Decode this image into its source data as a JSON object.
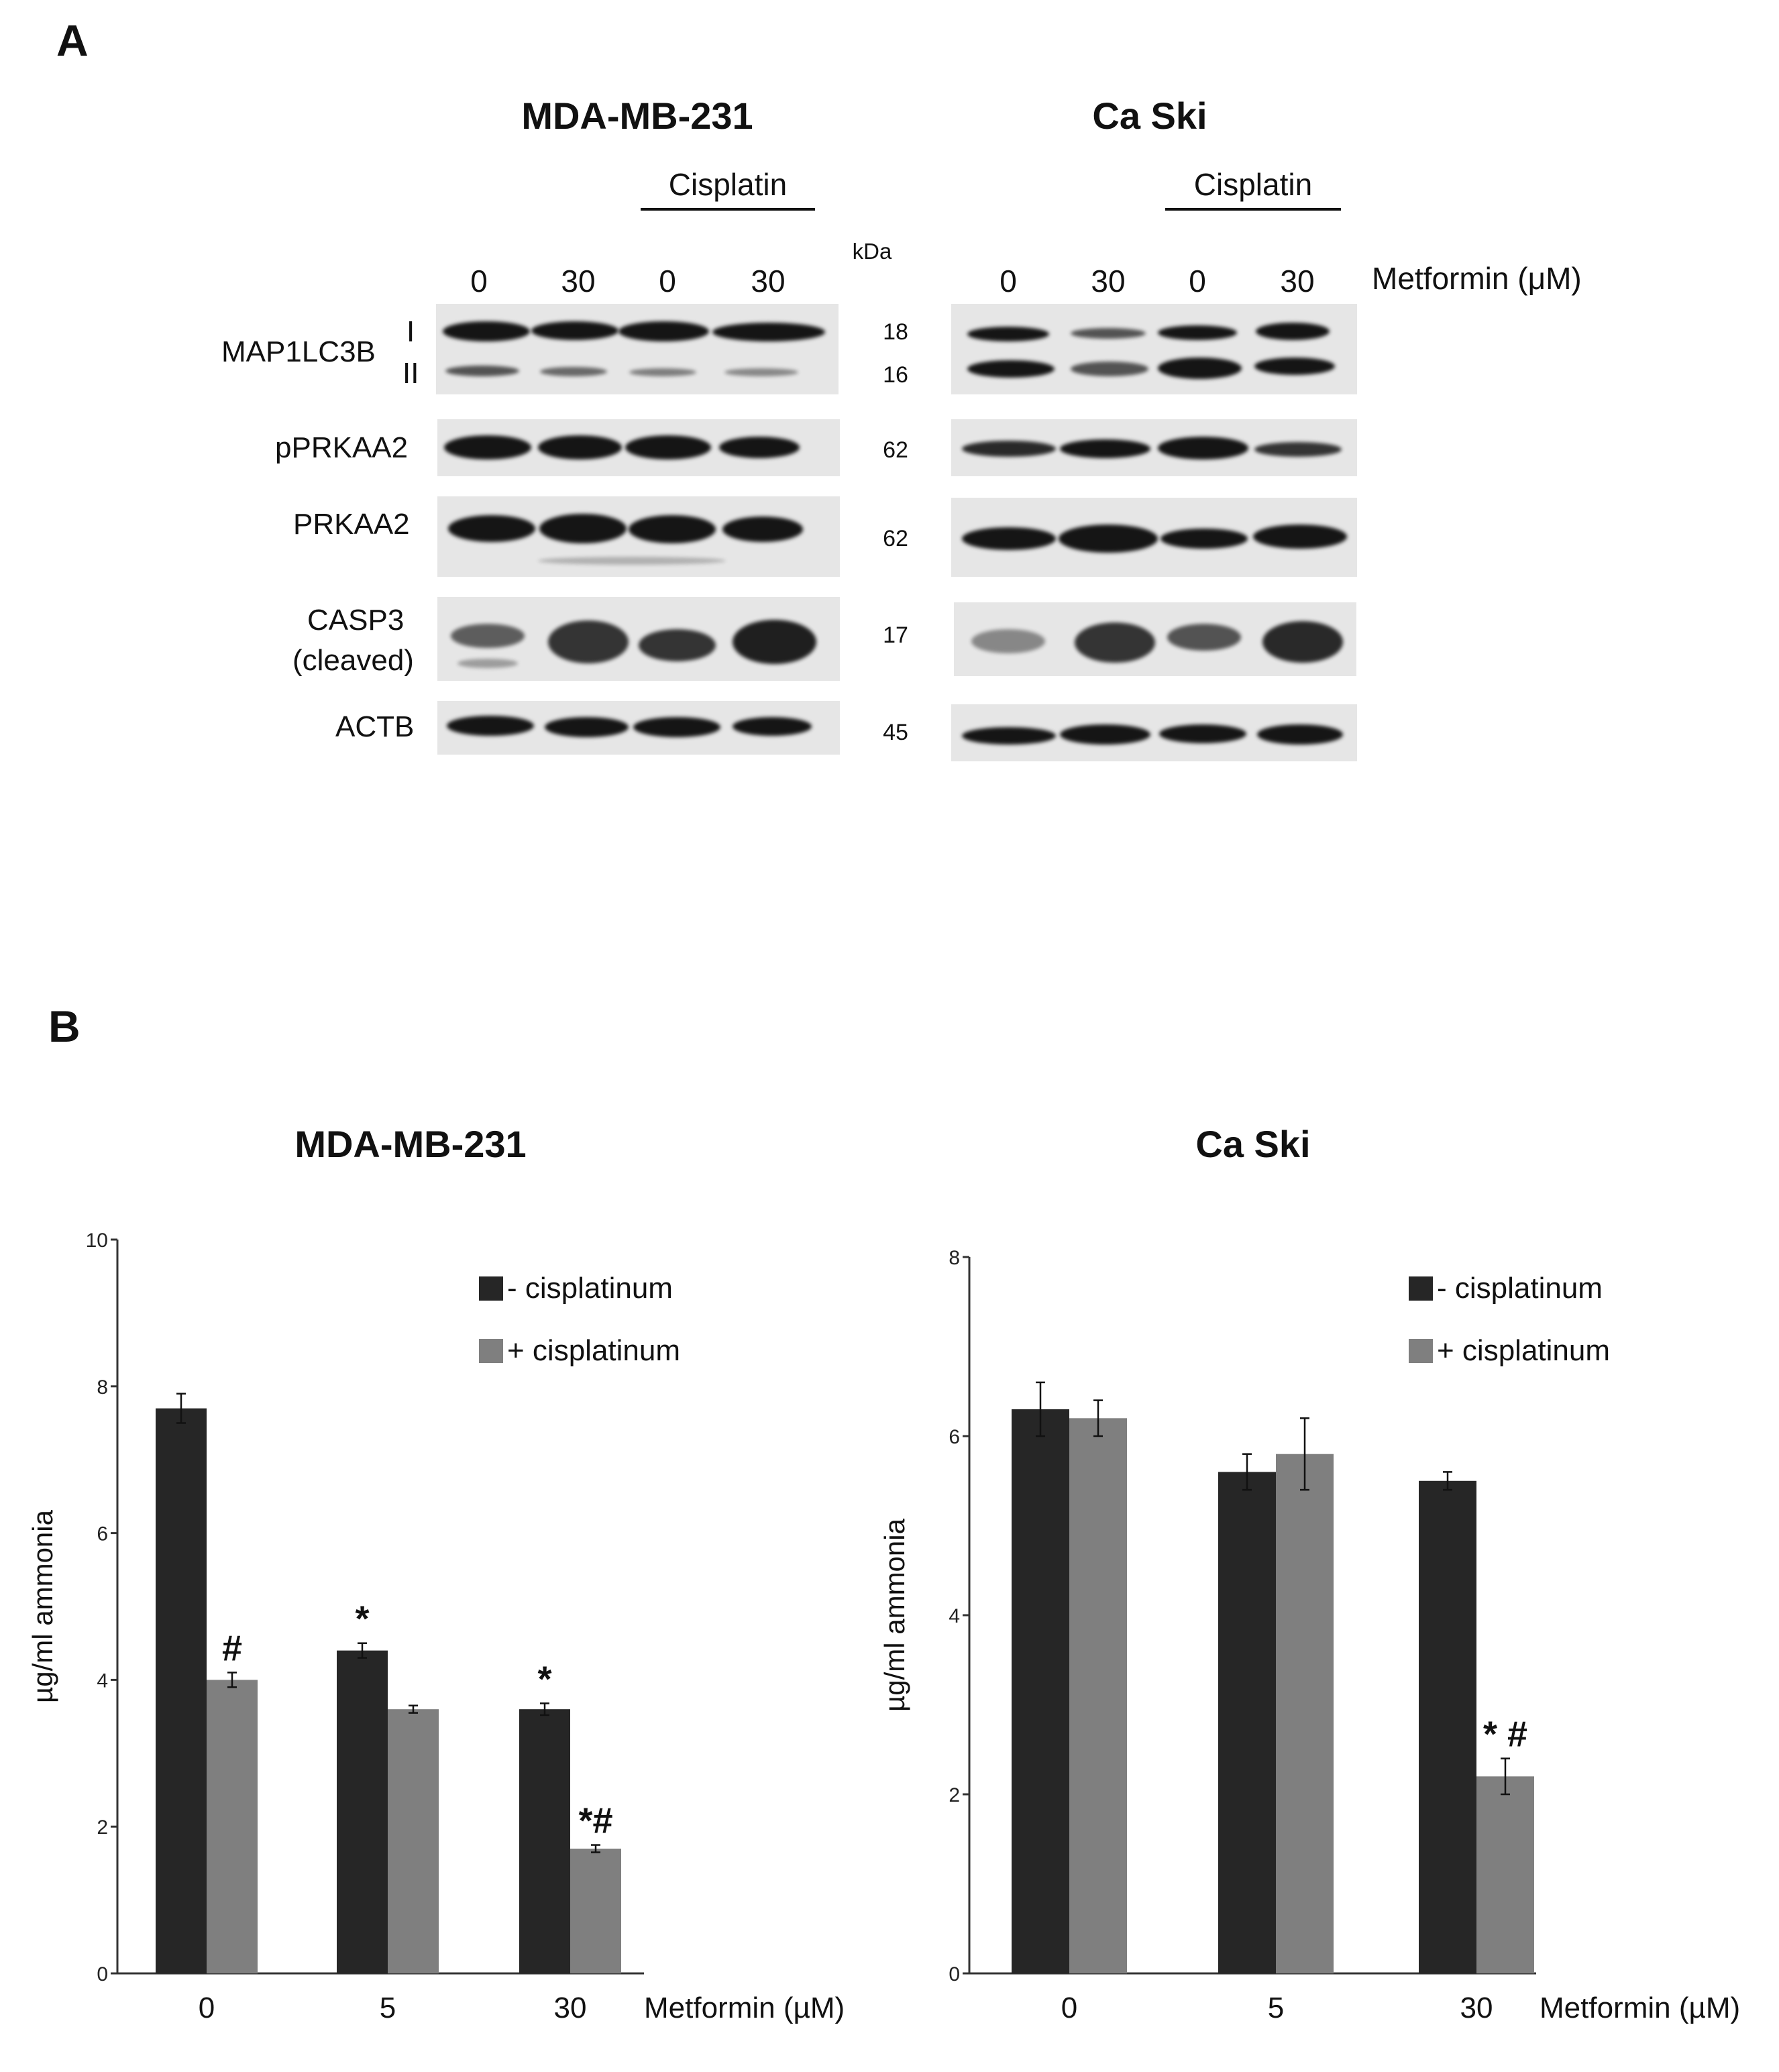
{
  "panel_a": {
    "letter": "A",
    "kda_label": "kDa",
    "metformin_label": "Metformin  (μM)",
    "row_labels": {
      "map1lc3b": "MAP1LC3B",
      "band_one": "I",
      "band_two": "II",
      "pprkaa2": "pPRKAA2",
      "prkaa2": "PRKAA2",
      "casp3_line1": "CASP3",
      "casp3_line2": "(cleaved)",
      "actb": "ACTB"
    },
    "kda_values": [
      "18",
      "16",
      "62",
      "62",
      "17",
      "45"
    ],
    "blots": [
      {
        "title": "MDA-MB-231",
        "treatment": "Cisplatin",
        "lanes": [
          "0",
          "30",
          "0",
          "30"
        ]
      },
      {
        "title": "Ca Ski",
        "treatment": "Cisplatin",
        "lanes": [
          "0",
          "30",
          "0",
          "30"
        ]
      }
    ]
  },
  "panel_b": {
    "letter": "B",
    "legend": {
      "minus": "- cisplatinum",
      "plus": "+ cisplatinum"
    },
    "colors": {
      "minus": "#262626",
      "plus": "#7f7f7f"
    }
  },
  "chart_data": [
    {
      "type": "bar",
      "title": "MDA-MB-231",
      "ylabel": "µg/ml ammonia",
      "xlabel": "Metformin (µM)",
      "categories": [
        "0",
        "5",
        "30"
      ],
      "ylim": [
        0,
        10
      ],
      "yticks": [
        "0",
        "2",
        "4",
        "6",
        "8",
        "10"
      ],
      "series": [
        {
          "name": "- cisplatinum",
          "values": [
            7.7,
            4.4,
            3.6
          ],
          "errors": [
            0.2,
            0.1,
            0.08
          ]
        },
        {
          "name": "+ cisplatinum",
          "values": [
            4.0,
            3.6,
            1.7
          ],
          "errors": [
            0.1,
            0.05,
            0.05
          ]
        }
      ],
      "annotations": [
        {
          "category": "0",
          "series": "+ cisplatinum",
          "text": "#"
        },
        {
          "category": "5",
          "series": "- cisplatinum",
          "text": "*"
        },
        {
          "category": "30",
          "series": "- cisplatinum",
          "text": "*"
        },
        {
          "category": "30",
          "series": "+ cisplatinum",
          "text": "*#"
        }
      ]
    },
    {
      "type": "bar",
      "title": "Ca Ski",
      "ylabel": "µg/ml ammonia",
      "xlabel": "Metformin (µM)",
      "categories": [
        "0",
        "5",
        "30"
      ],
      "ylim": [
        0,
        8
      ],
      "yticks": [
        "0",
        "2",
        "4",
        "6",
        "8"
      ],
      "series": [
        {
          "name": "- cisplatinum",
          "values": [
            6.3,
            5.6,
            5.5
          ],
          "errors": [
            0.3,
            0.2,
            0.1
          ]
        },
        {
          "name": "+ cisplatinum",
          "values": [
            6.2,
            5.8,
            2.2
          ],
          "errors": [
            0.2,
            0.4,
            0.2
          ]
        }
      ],
      "annotations": [
        {
          "category": "30",
          "series": "+ cisplatinum",
          "text": "* #"
        }
      ]
    }
  ]
}
